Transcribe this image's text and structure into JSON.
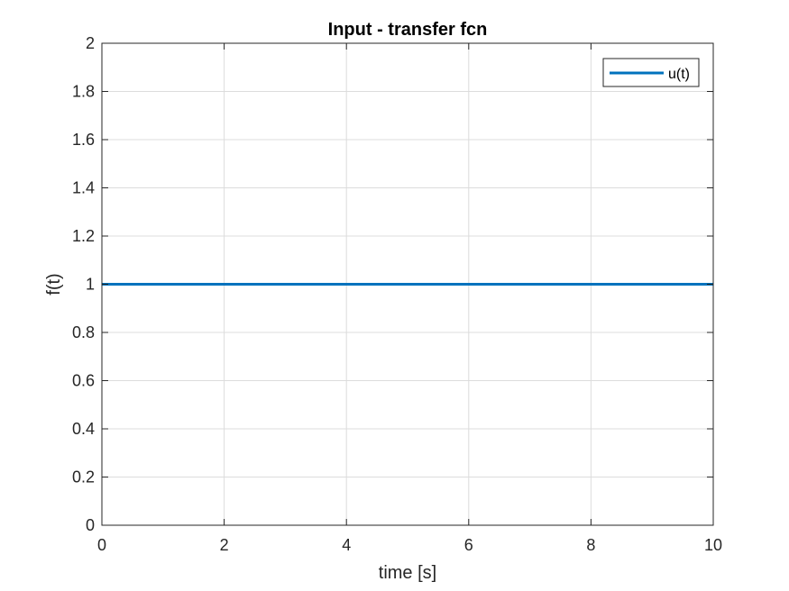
{
  "chart_data": {
    "type": "line",
    "title": "Input - transfer fcn",
    "xlabel": "time [s]",
    "ylabel": "f(t)",
    "xlim": [
      0,
      10
    ],
    "ylim": [
      0,
      2
    ],
    "xticks": [
      0,
      2,
      4,
      6,
      8,
      10
    ],
    "yticks": [
      0,
      0.2,
      0.4,
      0.6,
      0.8,
      1,
      1.2,
      1.4,
      1.6,
      1.8,
      2
    ],
    "xtick_labels": [
      "0",
      "2",
      "4",
      "6",
      "8",
      "10"
    ],
    "ytick_labels": [
      "0",
      "0.2",
      "0.4",
      "0.6",
      "0.8",
      "1",
      "1.2",
      "1.4",
      "1.6",
      "1.8",
      "2"
    ],
    "grid": true,
    "legend_position": "top-right",
    "series": [
      {
        "name": "u(t)",
        "color": "#0072BD",
        "x": [
          0,
          10
        ],
        "y": [
          1,
          1
        ]
      }
    ]
  }
}
